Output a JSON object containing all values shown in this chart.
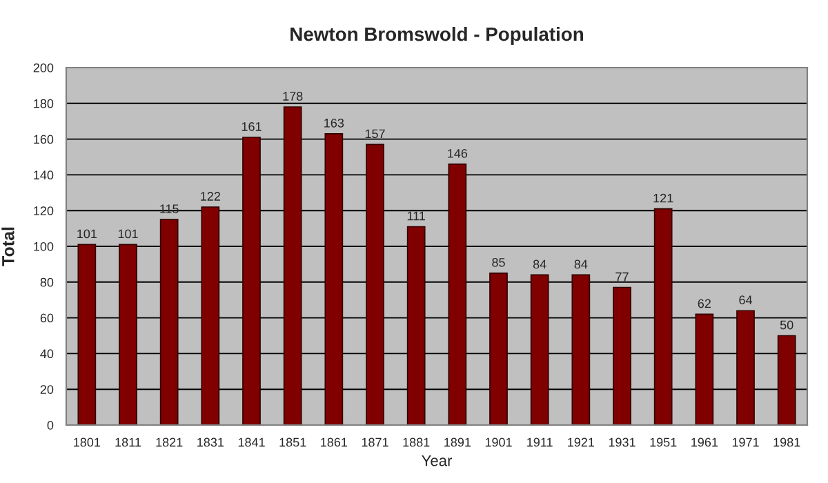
{
  "chart_data": {
    "type": "bar",
    "title": "Newton Bromswold - Population",
    "xlabel": "Year",
    "ylabel": "Total",
    "categories": [
      "1801",
      "1811",
      "1821",
      "1831",
      "1841",
      "1851",
      "1861",
      "1871",
      "1881",
      "1891",
      "1901",
      "1911",
      "1921",
      "1931",
      "1951",
      "1961",
      "1971",
      "1981"
    ],
    "series": [
      {
        "color": "#800000",
        "values": [
          101,
          101,
          115,
          122,
          161,
          178,
          163,
          157,
          111,
          146,
          85,
          84,
          84,
          77,
          121,
          62,
          64,
          50
        ]
      }
    ],
    "ylim": [
      0,
      200
    ],
    "yticks": [
      0,
      20,
      40,
      60,
      80,
      100,
      120,
      140,
      160,
      180,
      200
    ],
    "grid": "y",
    "data_labels": true,
    "legend": false
  }
}
